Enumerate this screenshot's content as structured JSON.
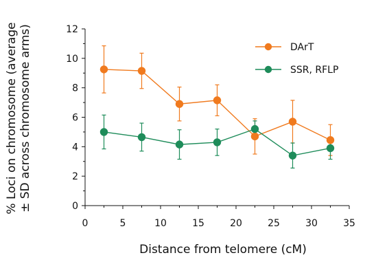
{
  "chart_data": {
    "type": "line",
    "xlabel": "Distance from telomere (cM)",
    "ylabel_line1": "% Loci on chromosome (average",
    "ylabel_line2": "± SD across chromosome arms)",
    "xlim": [
      0,
      35
    ],
    "ylim": [
      0,
      12
    ],
    "xticks": [
      0,
      5,
      10,
      15,
      20,
      25,
      30,
      35
    ],
    "yticks": [
      0,
      2,
      4,
      6,
      8,
      10,
      12
    ],
    "grid": false,
    "legend_position": "top-right",
    "series": [
      {
        "name": "DArT",
        "color": "#F07A1E",
        "x": [
          2.5,
          7.5,
          12.5,
          17.5,
          22.5,
          27.5,
          32.5
        ],
        "y": [
          9.25,
          9.15,
          6.9,
          7.15,
          4.7,
          5.7,
          4.45
        ],
        "err": [
          1.6,
          1.2,
          1.15,
          1.05,
          1.2,
          1.45,
          1.05
        ]
      },
      {
        "name": "SSR, RFLP",
        "color": "#1E8C5A",
        "x": [
          2.5,
          7.5,
          12.5,
          17.5,
          22.5,
          27.5,
          32.5
        ],
        "y": [
          5.0,
          4.65,
          4.15,
          4.3,
          5.2,
          3.4,
          3.9
        ],
        "err": [
          1.15,
          0.95,
          1.0,
          0.9,
          0.55,
          0.85,
          0.75
        ]
      }
    ]
  }
}
